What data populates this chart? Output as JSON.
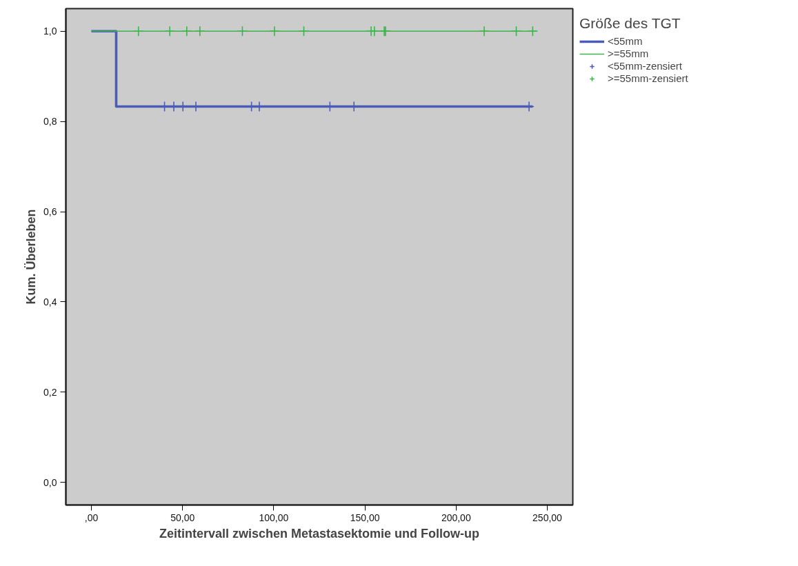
{
  "chart_data": {
    "type": "step",
    "xlabel": "Zeitintervall zwischen Metastasektomie und Follow-up",
    "ylabel": "Kum. Überleben",
    "legend_title": "Größe des TGT",
    "xlim": [
      -14,
      264
    ],
    "ylim": [
      -0.05,
      1.05
    ],
    "xticks": [
      {
        "value": 0,
        "label": ",00"
      },
      {
        "value": 50,
        "label": "50,00"
      },
      {
        "value": 100,
        "label": "100,00"
      },
      {
        "value": 150,
        "label": "150,00"
      },
      {
        "value": 200,
        "label": "200,00"
      },
      {
        "value": 250,
        "label": "250,00"
      }
    ],
    "yticks": [
      {
        "value": 0,
        "label": "0,0"
      },
      {
        "value": 0.2,
        "label": "0,2"
      },
      {
        "value": 0.4,
        "label": "0,4"
      },
      {
        "value": 0.6,
        "label": "0,6"
      },
      {
        "value": 0.8,
        "label": "0,8"
      },
      {
        "value": 1,
        "label": "1,0"
      }
    ],
    "grid": false,
    "legend": "right",
    "series": [
      {
        "name": "<55mm",
        "color": "#4a5bb8",
        "x": [
          0,
          13.6,
          242
        ],
        "values": [
          1,
          0.833,
          0.833
        ]
      },
      {
        "name": ">=55mm",
        "color": "#3cb44b",
        "x": [
          0,
          244.4
        ],
        "values": [
          1,
          1
        ]
      },
      {
        "name": "<55mm-zensiert",
        "type": "scatter",
        "marker": "cross",
        "color": "#4a5bb8",
        "x": [
          40.1,
          45.2,
          50.2,
          57.3,
          87.8,
          92.1,
          130.8,
          144,
          240
        ],
        "values": [
          0.833,
          0.833,
          0.833,
          0.833,
          0.833,
          0.833,
          0.833,
          0.833,
          0.833
        ]
      },
      {
        "name": ">=55mm-zensiert",
        "type": "scatter",
        "marker": "cross",
        "color": "#3cb44b",
        "x": [
          25.8,
          43,
          52.3,
          59.5,
          82.8,
          100.4,
          116.5,
          153.4,
          155.2,
          160.6,
          161.3,
          215.4,
          233,
          242
        ],
        "values": [
          1,
          1,
          1,
          1,
          1,
          1,
          1,
          1,
          1,
          1,
          1,
          1,
          1,
          1
        ]
      }
    ]
  }
}
